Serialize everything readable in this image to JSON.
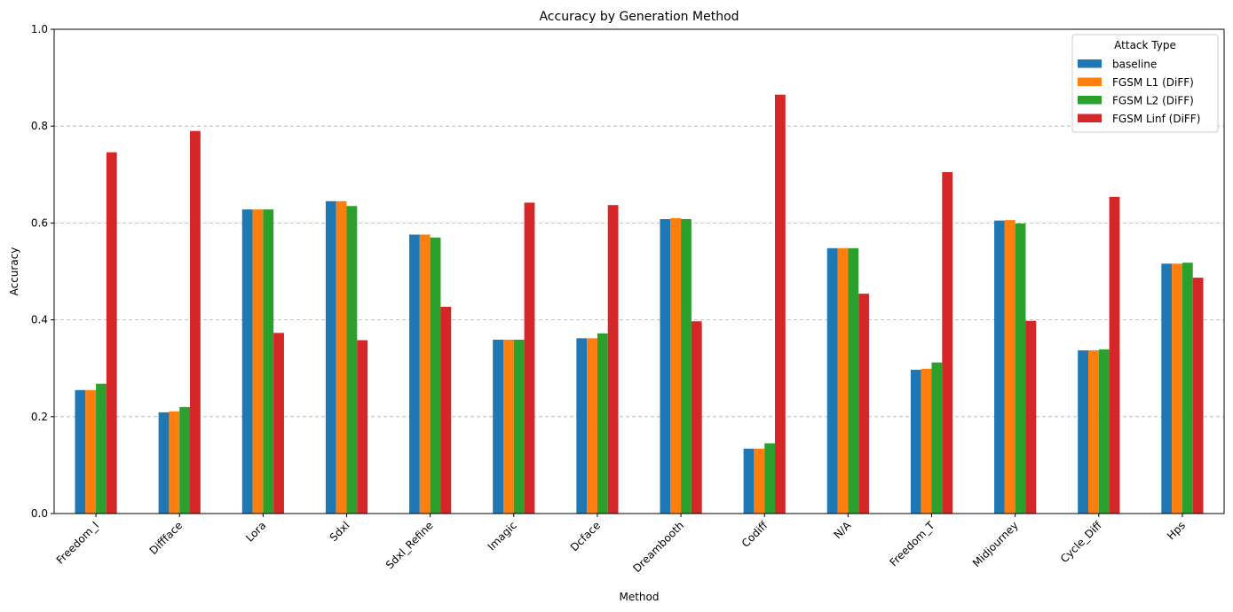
{
  "chart_data": {
    "type": "bar",
    "title": "Accuracy by Generation Method",
    "xlabel": "Method",
    "ylabel": "Accuracy",
    "ylim": [
      0,
      1.0
    ],
    "yticks": [
      "0.0",
      "0.2",
      "0.4",
      "0.6",
      "0.8",
      "1.0"
    ],
    "grid": "y, dashed",
    "legend_title": "Attack Type",
    "legend_position": "top-right",
    "categories": [
      "Freedom_I",
      "Diffface",
      "Lora",
      "Sdxl",
      "Sdxl_Refine",
      "Imagic",
      "Dcface",
      "Dreambooth",
      "Codiff",
      "N/A",
      "Freedom_T",
      "Midjourney",
      "Cycle_Diff",
      "Hps"
    ],
    "series": [
      {
        "name": "baseline",
        "color": "#1f77b4",
        "values": [
          0.255,
          0.209,
          0.628,
          0.645,
          0.576,
          0.359,
          0.362,
          0.608,
          0.134,
          0.548,
          0.297,
          0.605,
          0.337,
          0.516
        ]
      },
      {
        "name": "FGSM L1 (DiFF)",
        "color": "#ff7f0e",
        "values": [
          0.255,
          0.211,
          0.628,
          0.645,
          0.576,
          0.359,
          0.362,
          0.61,
          0.134,
          0.548,
          0.299,
          0.606,
          0.337,
          0.516
        ]
      },
      {
        "name": "FGSM L2 (DiFF)",
        "color": "#2ca02c",
        "values": [
          0.268,
          0.22,
          0.628,
          0.635,
          0.57,
          0.359,
          0.372,
          0.608,
          0.145,
          0.548,
          0.312,
          0.599,
          0.339,
          0.518
        ]
      },
      {
        "name": "FGSM Linf (DiFF)",
        "color": "#d62728",
        "values": [
          0.746,
          0.79,
          0.373,
          0.358,
          0.427,
          0.642,
          0.637,
          0.397,
          0.865,
          0.454,
          0.705,
          0.398,
          0.654,
          0.487
        ]
      }
    ]
  }
}
